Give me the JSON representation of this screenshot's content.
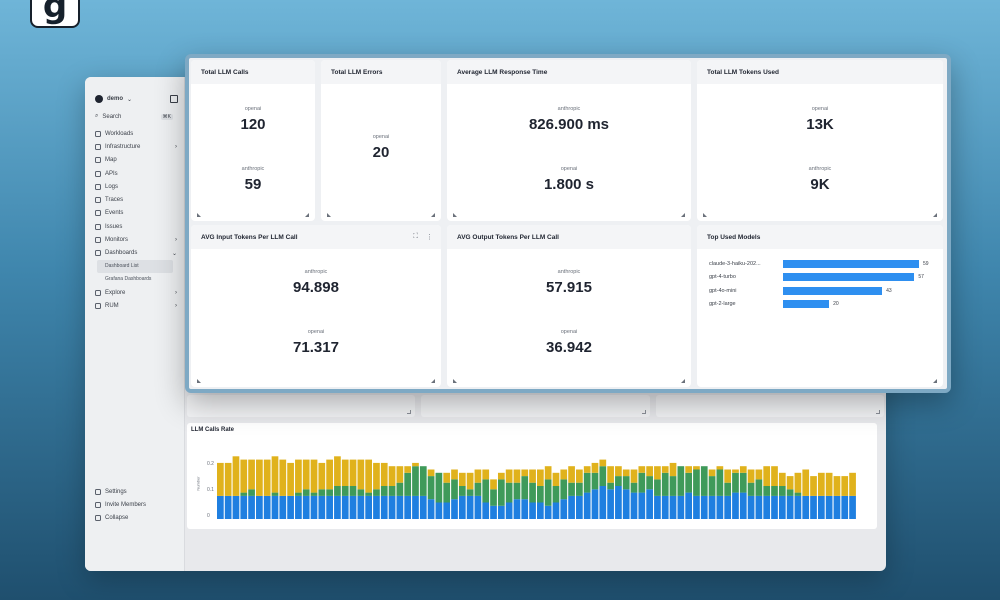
{
  "logo": {
    "letter": "g"
  },
  "sidebar": {
    "org_name": "demo",
    "search_label": "Search",
    "search_shortcut": "⌘K",
    "items": [
      {
        "label": "Workloads",
        "icon": "workloads-icon",
        "chevron": ""
      },
      {
        "label": "Infrastructure",
        "icon": "infrastructure-icon",
        "chevron": "›"
      },
      {
        "label": "Map",
        "icon": "map-icon",
        "chevron": ""
      },
      {
        "label": "APIs",
        "icon": "apis-icon",
        "chevron": ""
      },
      {
        "label": "Logs",
        "icon": "logs-icon",
        "chevron": ""
      },
      {
        "label": "Traces",
        "icon": "traces-icon",
        "chevron": ""
      },
      {
        "label": "Events",
        "icon": "events-icon",
        "chevron": ""
      },
      {
        "label": "Issues",
        "icon": "issues-icon",
        "chevron": ""
      },
      {
        "label": "Monitors",
        "icon": "monitors-icon",
        "chevron": "›"
      },
      {
        "label": "Dashboards",
        "icon": "dashboards-icon",
        "chevron": "⌄"
      }
    ],
    "subitems": [
      {
        "label": "Dashboard List",
        "active": true
      },
      {
        "label": "Grafana Dashboards",
        "active": false
      }
    ],
    "items_after": [
      {
        "label": "Explore",
        "icon": "explore-icon",
        "chevron": "›"
      },
      {
        "label": "RUM",
        "icon": "rum-icon",
        "chevron": "›"
      }
    ],
    "bottom": [
      {
        "label": "Settings",
        "icon": "gear-icon"
      },
      {
        "label": "Invite Members",
        "icon": "invite-icon"
      },
      {
        "label": "Collapse",
        "icon": "collapse-icon"
      }
    ]
  },
  "panels": {
    "total_calls": {
      "title": "Total LLM Calls",
      "stats": [
        {
          "label": "openai",
          "value": "120"
        },
        {
          "label": "anthropic",
          "value": "59"
        }
      ]
    },
    "total_errors": {
      "title": "Total LLM Errors",
      "stats": [
        {
          "label": "openai",
          "value": "20"
        }
      ]
    },
    "avg_response": {
      "title": "Average LLM Response Time",
      "stats": [
        {
          "label": "anthropic",
          "value": "826.900 ms"
        },
        {
          "label": "openai",
          "value": "1.800 s"
        }
      ]
    },
    "tokens_used": {
      "title": "Total LLM Tokens Used",
      "stats": [
        {
          "label": "openai",
          "value": "13K"
        },
        {
          "label": "anthropic",
          "value": "9K"
        }
      ]
    },
    "avg_input": {
      "title": "AVG Input Tokens Per LLM Call",
      "stats": [
        {
          "label": "anthropic",
          "value": "94.898"
        },
        {
          "label": "openai",
          "value": "71.317"
        }
      ]
    },
    "avg_output": {
      "title": "AVG Output Tokens Per LLM Call",
      "stats": [
        {
          "label": "anthropic",
          "value": "57.915"
        },
        {
          "label": "openai",
          "value": "36.942"
        }
      ]
    },
    "top_models": {
      "title": "Top Used Models",
      "models": [
        {
          "name": "claude-3-haiku-202...",
          "count": 59
        },
        {
          "name": "gpt-4-turbo",
          "count": 57
        },
        {
          "name": "gpt-4o-mini",
          "count": 43
        },
        {
          "name": "gpt-2-large",
          "count": 20
        }
      ],
      "bar_color": "#2e8ff0"
    }
  },
  "rate_panel": {
    "title": "LLM Calls Rate",
    "ylabel": "Number",
    "ticks": [
      "0.2",
      "0.1",
      "0"
    ]
  },
  "chart_data": {
    "type": "bar",
    "title": "LLM Calls Rate",
    "ylabel": "Number",
    "stacked": true,
    "ylim": [
      0,
      0.2
    ],
    "series_colors": [
      "#1f7fe0",
      "#3f9a5a",
      "#e0b21c"
    ],
    "series": [
      {
        "values": [
          0.07,
          0.07,
          0.07,
          0.07,
          0.07,
          0.07,
          0.07,
          0.07,
          0.07,
          0.07,
          0.07,
          0.07,
          0.07,
          0.07,
          0.07,
          0.07,
          0.07,
          0.07,
          0.07,
          0.07,
          0.07,
          0.07,
          0.07,
          0.07,
          0.07,
          0.07,
          0.07,
          0.06,
          0.05,
          0.05,
          0.06,
          0.07,
          0.07,
          0.07,
          0.05,
          0.04,
          0.04,
          0.05,
          0.06,
          0.06,
          0.05,
          0.05,
          0.04,
          0.05,
          0.06,
          0.07,
          0.07,
          0.08,
          0.09,
          0.1,
          0.09,
          0.1,
          0.09,
          0.08,
          0.08,
          0.09,
          0.07,
          0.07,
          0.07,
          0.07,
          0.08,
          0.07,
          0.07,
          0.07,
          0.07,
          0.07,
          0.08,
          0.08,
          0.07,
          0.07,
          0.07,
          0.07,
          0.07,
          0.07,
          0.07,
          0.07,
          0.07,
          0.07,
          0.07,
          0.07,
          0.07,
          0.07
        ]
      },
      {
        "values": [
          0.0,
          0.0,
          0.0,
          0.01,
          0.02,
          0.0,
          0.0,
          0.01,
          0.0,
          0.0,
          0.01,
          0.02,
          0.01,
          0.02,
          0.02,
          0.03,
          0.03,
          0.03,
          0.02,
          0.01,
          0.02,
          0.03,
          0.03,
          0.04,
          0.07,
          0.09,
          0.09,
          0.07,
          0.09,
          0.06,
          0.06,
          0.03,
          0.02,
          0.04,
          0.07,
          0.05,
          0.08,
          0.06,
          0.05,
          0.07,
          0.06,
          0.05,
          0.08,
          0.05,
          0.06,
          0.04,
          0.04,
          0.06,
          0.05,
          0.06,
          0.02,
          0.03,
          0.04,
          0.03,
          0.06,
          0.04,
          0.05,
          0.07,
          0.06,
          0.09,
          0.06,
          0.08,
          0.09,
          0.06,
          0.08,
          0.04,
          0.06,
          0.06,
          0.04,
          0.05,
          0.03,
          0.03,
          0.03,
          0.02,
          0.01,
          0.0,
          0.0,
          0.0,
          0.0,
          0.0,
          0.0,
          0.0
        ]
      },
      {
        "values": [
          0.1,
          0.1,
          0.12,
          0.1,
          0.09,
          0.11,
          0.11,
          0.11,
          0.11,
          0.1,
          0.1,
          0.09,
          0.1,
          0.08,
          0.09,
          0.09,
          0.08,
          0.08,
          0.09,
          0.1,
          0.08,
          0.07,
          0.06,
          0.05,
          0.02,
          0.01,
          0.0,
          0.02,
          0.0,
          0.03,
          0.03,
          0.04,
          0.05,
          0.04,
          0.03,
          0.03,
          0.02,
          0.04,
          0.04,
          0.02,
          0.04,
          0.05,
          0.04,
          0.04,
          0.03,
          0.05,
          0.04,
          0.02,
          0.03,
          0.02,
          0.05,
          0.03,
          0.02,
          0.04,
          0.02,
          0.03,
          0.04,
          0.02,
          0.04,
          0.0,
          0.02,
          0.01,
          0.0,
          0.02,
          0.01,
          0.04,
          0.01,
          0.02,
          0.04,
          0.03,
          0.06,
          0.06,
          0.04,
          0.04,
          0.06,
          0.08,
          0.06,
          0.07,
          0.07,
          0.06,
          0.06,
          0.07
        ]
      }
    ]
  }
}
